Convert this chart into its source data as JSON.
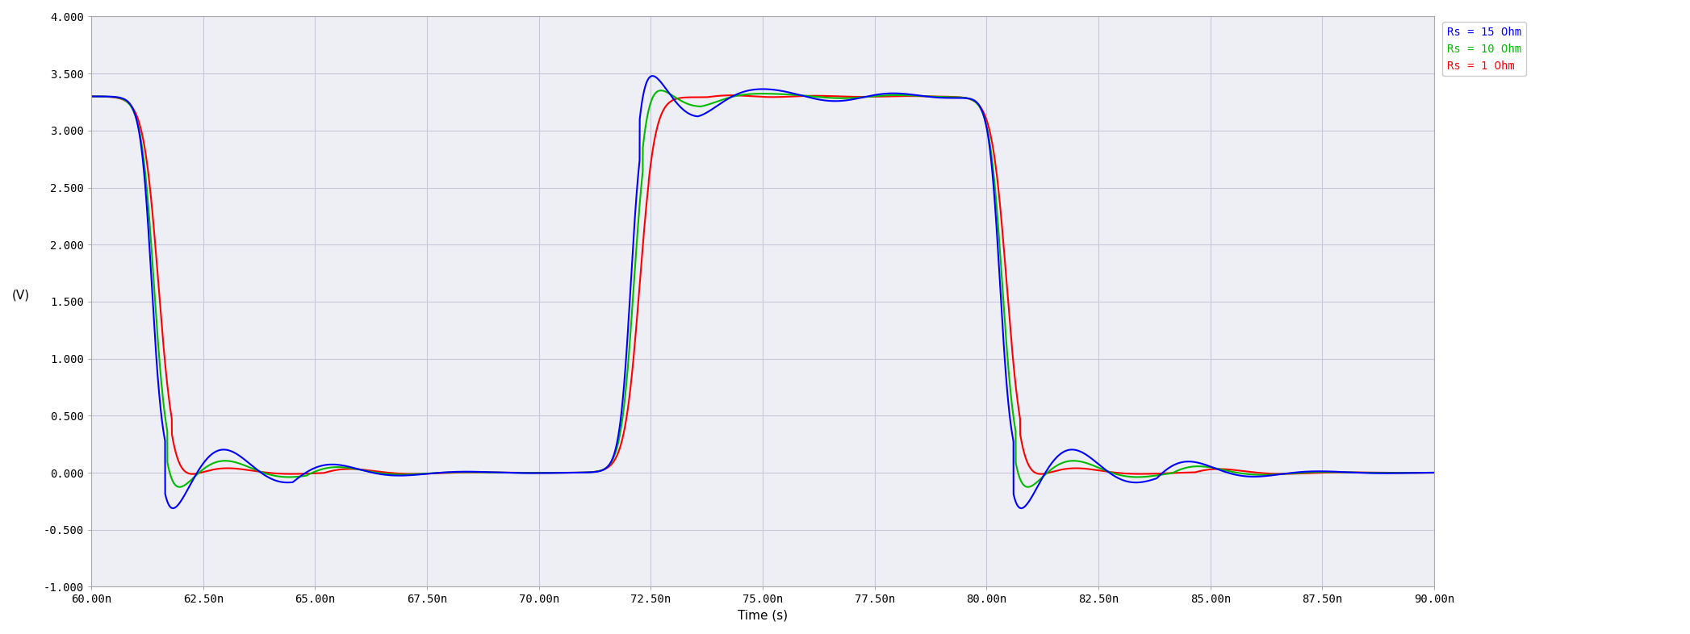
{
  "title": "",
  "xlabel": "Time (s)",
  "ylabel": "(V)",
  "xlim": [
    6e-08,
    9e-08
  ],
  "ylim": [
    -1.0,
    4.0
  ],
  "xticks": [
    6e-08,
    6.25e-08,
    6.5e-08,
    6.75e-08,
    7e-08,
    7.25e-08,
    7.5e-08,
    7.75e-08,
    8e-08,
    8.25e-08,
    8.5e-08,
    8.75e-08,
    9e-08
  ],
  "xtick_labels": [
    "60.00n",
    "62.50n",
    "65.00n",
    "67.50n",
    "70.00n",
    "72.50n",
    "75.00n",
    "77.50n",
    "80.00n",
    "82.50n",
    "85.00n",
    "87.50n",
    "90.00n"
  ],
  "yticks": [
    -1.0,
    -0.5,
    0.0,
    0.5,
    1.0,
    1.5,
    2.0,
    2.5,
    3.0,
    3.5,
    4.0
  ],
  "ytick_labels": [
    "-1.000",
    "-0.500",
    "0.000",
    "0.500",
    "1.000",
    "1.500",
    "2.000",
    "2.500",
    "3.000",
    "3.500",
    "4.000"
  ],
  "legend_labels": [
    "Rs = 1 Ohm",
    "Rs = 10 Ohm",
    "Rs = 15 Ohm"
  ],
  "colors": [
    "#0000FF",
    "#00BB00",
    "#FF0000"
  ],
  "background_color": "#EEEEF5",
  "grid_color": "#C8C8D8",
  "line_width": 1.5
}
